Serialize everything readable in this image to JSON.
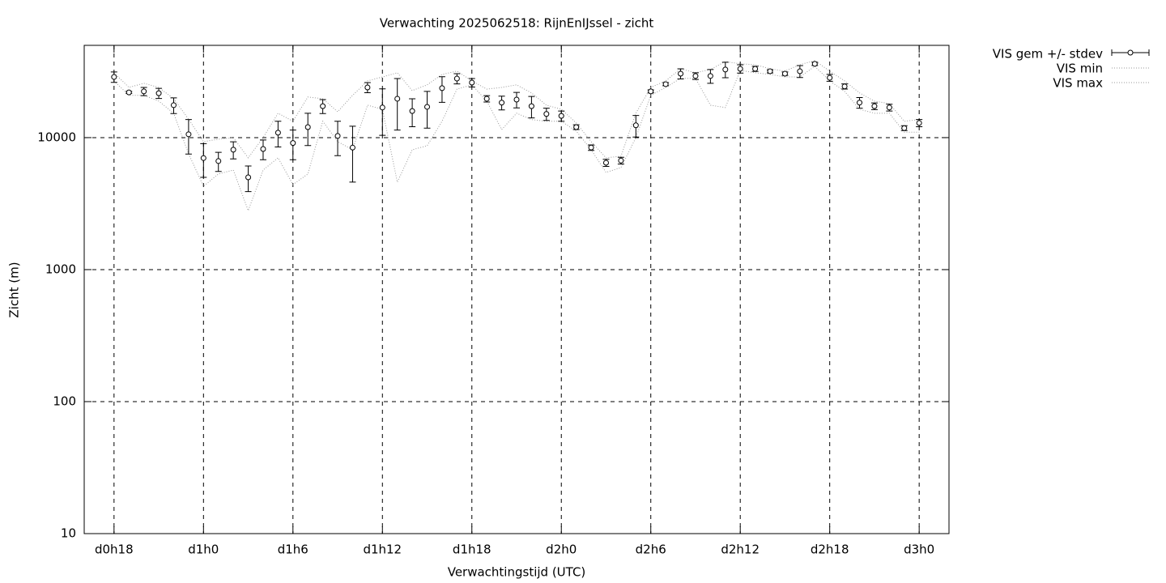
{
  "chart_data": {
    "type": "errorbar_line",
    "title": "Verwachting 2025062518: RijnEnIJssel - zicht",
    "x_label": "Verwachtingstijd (UTC)",
    "y_label": "Zicht (m)",
    "log_y": true,
    "grid": true,
    "legend": "outside-top-right",
    "xlim": [
      16,
      74
    ],
    "xticks": [
      {
        "value": 18,
        "label": "d0h18"
      },
      {
        "value": 24,
        "label": "d1h0"
      },
      {
        "value": 30,
        "label": "d1h6"
      },
      {
        "value": 36,
        "label": "d1h12"
      },
      {
        "value": 42,
        "label": "d1h18"
      },
      {
        "value": 48,
        "label": "d2h0"
      },
      {
        "value": 54,
        "label": "d2h6"
      },
      {
        "value": 60,
        "label": "d2h12"
      },
      {
        "value": 66,
        "label": "d2h18"
      },
      {
        "value": 72,
        "label": "d3h0"
      }
    ],
    "ylim": [
      10,
      50000
    ],
    "yticks": [
      10,
      100,
      1000,
      10000
    ],
    "x": [
      18,
      19,
      20,
      21,
      22,
      23,
      24,
      25,
      26,
      27,
      28,
      29,
      30,
      31,
      32,
      33,
      34,
      35,
      36,
      37,
      38,
      39,
      40,
      41,
      42,
      43,
      44,
      45,
      46,
      47,
      48,
      49,
      50,
      51,
      52,
      53,
      54,
      55,
      56,
      57,
      58,
      59,
      60,
      61,
      62,
      63,
      64,
      65,
      66,
      67,
      68,
      69,
      70,
      71,
      72
    ],
    "series": [
      {
        "name": "VIS gem +/- stdev",
        "color": "#000000",
        "values": [
          28800,
          22000,
          22400,
          21700,
          17600,
          10600,
          7000,
          6640,
          8100,
          5000,
          8200,
          10900,
          9100,
          12000,
          17300,
          10300,
          8400,
          24000,
          16900,
          19700,
          15900,
          17100,
          23700,
          28000,
          26100,
          19700,
          18400,
          19400,
          17300,
          15100,
          14600,
          12000,
          8400,
          6450,
          6700,
          12400,
          22400,
          25400,
          30500,
          29300,
          29300,
          32800,
          33200,
          33200,
          31800,
          30500,
          31800,
          36200,
          28400,
          24400,
          18400,
          17300,
          16900,
          11800,
          12900
        ],
        "errors": [
          2600,
          400,
          1600,
          1900,
          2400,
          3100,
          2000,
          1100,
          1200,
          1100,
          1400,
          2400,
          2300,
          3300,
          2100,
          3000,
          3800,
          2100,
          6500,
          8300,
          3800,
          5300,
          5200,
          2500,
          1900,
          1100,
          2200,
          2600,
          3200,
          1600,
          1300,
          500,
          400,
          400,
          400,
          2300,
          600,
          700,
          2700,
          1700,
          3500,
          4400,
          2400,
          1500,
          900,
          900,
          3300,
          1000,
          1700,
          1100,
          1700,
          1000,
          1000,
          500,
          800
        ]
      },
      {
        "name": "VIS min",
        "color": "#999999",
        "values": [
          26900,
          20900,
          20900,
          18900,
          15300,
          7540,
          4280,
          5300,
          5680,
          2800,
          5680,
          7030,
          4410,
          5300,
          13300,
          9320,
          8090,
          17600,
          16400,
          4600,
          8090,
          8680,
          13300,
          23300,
          25100,
          18900,
          11500,
          15300,
          13700,
          13300,
          13300,
          11200,
          8090,
          5450,
          5930,
          10000,
          20900,
          24000,
          28100,
          28100,
          17600,
          16900,
          32300,
          31000,
          30100,
          28800,
          28800,
          34700,
          26900,
          22400,
          16400,
          15300,
          15300,
          11000,
          11000
        ]
      },
      {
        "name": "VIS max",
        "color": "#999999",
        "values": [
          31000,
          24000,
          25800,
          24000,
          19700,
          13800,
          9320,
          9720,
          10000,
          7030,
          10000,
          15300,
          13300,
          20300,
          19700,
          15700,
          20900,
          26900,
          28800,
          31000,
          22700,
          25100,
          30100,
          31900,
          26900,
          23300,
          24000,
          25100,
          21800,
          17600,
          16400,
          12900,
          9320,
          7030,
          7230,
          15300,
          24000,
          26900,
          33200,
          31000,
          32800,
          37700,
          36200,
          35700,
          33200,
          31900,
          35700,
          38300,
          31900,
          26900,
          21800,
          18900,
          18100,
          13300,
          13700
        ]
      }
    ]
  }
}
